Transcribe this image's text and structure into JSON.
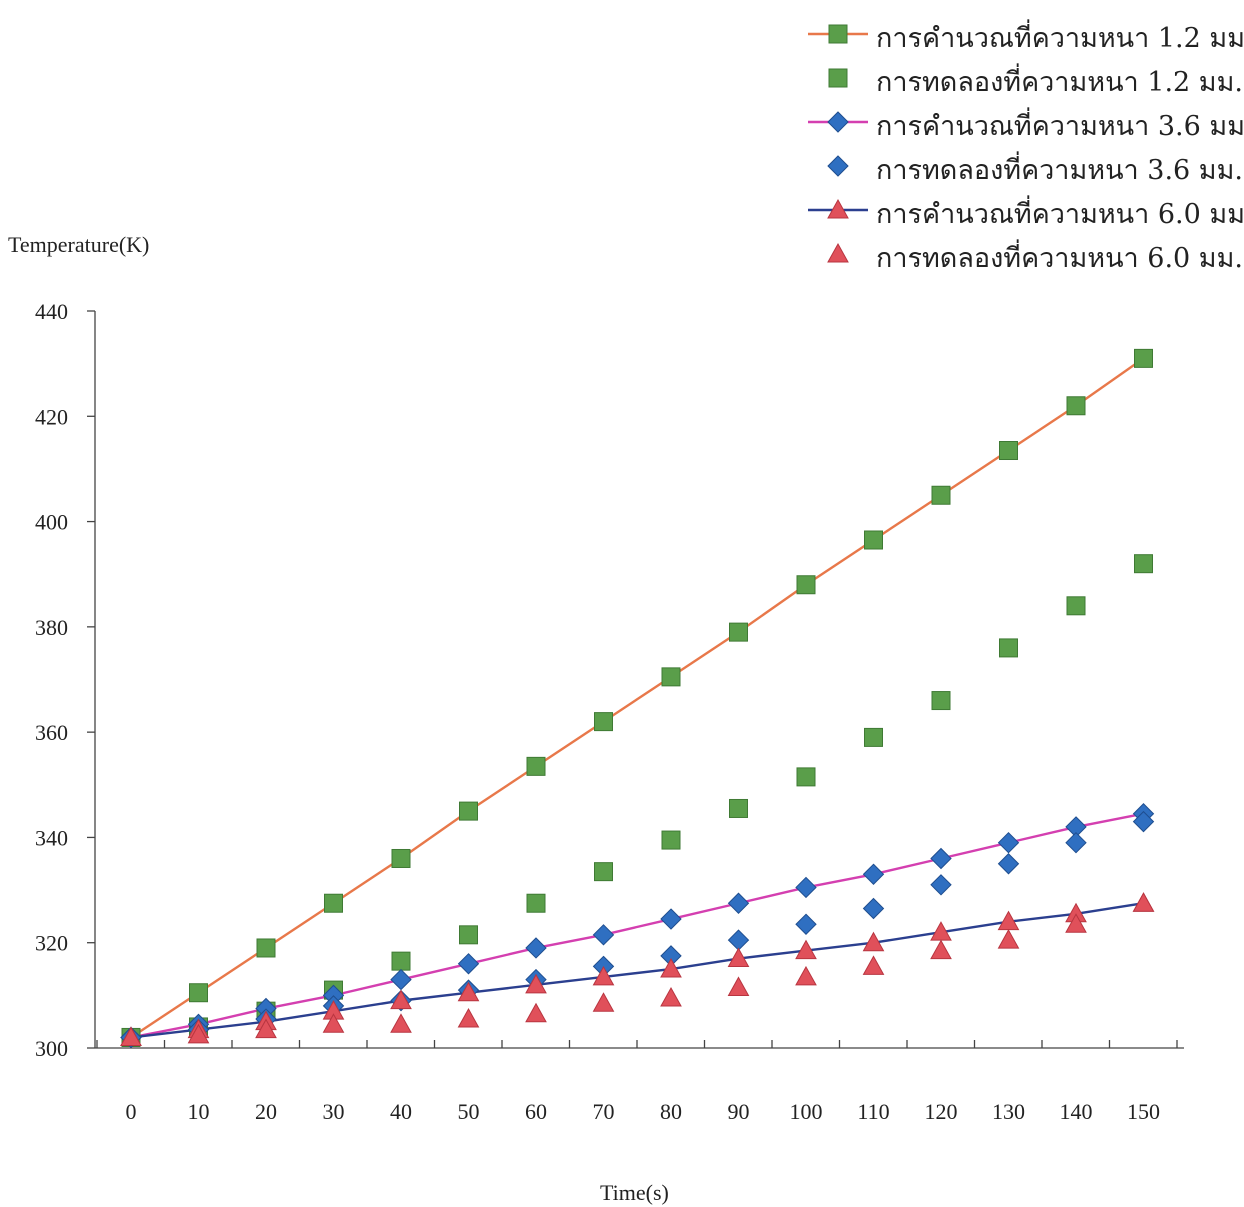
{
  "chart_data": {
    "type": "line",
    "xlabel": "Time(s)",
    "ylabel": "Temperature(K)",
    "x": [
      0,
      10,
      20,
      30,
      40,
      50,
      60,
      70,
      80,
      90,
      100,
      110,
      120,
      130,
      140,
      150
    ],
    "ylim": [
      300,
      440
    ],
    "yticks": [
      300,
      320,
      340,
      360,
      380,
      400,
      420,
      440
    ],
    "grid": false,
    "legend_position": "top-right",
    "series": [
      {
        "name": "การคำนวณที่ความหนา 1.2 มม.",
        "style": "line-marker",
        "marker": "square",
        "color": "#e8784a",
        "marker_color": "#5a9e4a",
        "values": [
          302,
          310.5,
          319,
          327.5,
          336,
          345,
          353.5,
          362,
          370.5,
          379,
          388,
          396.5,
          405,
          413.5,
          422,
          431
        ]
      },
      {
        "name": "การทดลองที่ความหนา 1.2 มม.",
        "style": "marker",
        "marker": "square",
        "marker_color": "#5a9e4a",
        "values": [
          302,
          304,
          307,
          311,
          316.5,
          321.5,
          327.5,
          333.5,
          339.5,
          345.5,
          351.5,
          359,
          366,
          376,
          384,
          392
        ]
      },
      {
        "name": "การคำนวณที่ความหนา 3.6 มม.",
        "style": "line-marker",
        "marker": "diamond",
        "color": "#d43fb0",
        "marker_color": "#2f6fc1",
        "values": [
          302,
          304.5,
          307.5,
          310,
          313,
          316,
          319,
          321.5,
          324.5,
          327.5,
          330.5,
          333,
          336,
          339,
          342,
          344.5
        ]
      },
      {
        "name": "การทดลองที่ความหนา 3.6 มม.",
        "style": "marker",
        "marker": "diamond",
        "marker_color": "#2f6fc1",
        "values": [
          302,
          303.5,
          305.5,
          308,
          309,
          311,
          313,
          315.5,
          317.5,
          320.5,
          323.5,
          326.5,
          331,
          335,
          339,
          343
        ]
      },
      {
        "name": "การคำนวณที่ความหนา 6.0 มม.",
        "style": "line-marker",
        "marker": "triangle",
        "color": "#2b3f8f",
        "marker_color": "#e0505a",
        "values": [
          302,
          303.5,
          305,
          307,
          309,
          310.5,
          312,
          313.5,
          315,
          317,
          318.5,
          320,
          322,
          324,
          325.5,
          327.5
        ]
      },
      {
        "name": "การทดลองที่ความหนา 6.0 มม.",
        "style": "marker",
        "marker": "triangle",
        "marker_color": "#e0505a",
        "values": [
          302,
          302.5,
          303.5,
          304.5,
          304.5,
          305.5,
          306.5,
          308.5,
          309.5,
          311.5,
          313.5,
          315.5,
          318.5,
          320.5,
          323.5,
          327.5
        ]
      }
    ]
  }
}
